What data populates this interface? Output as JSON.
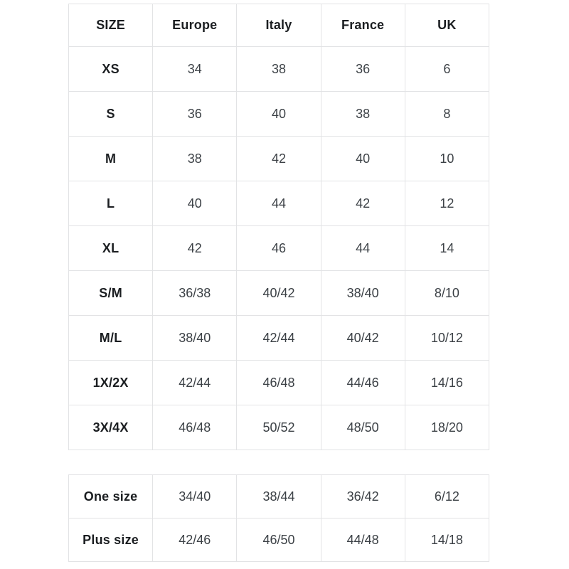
{
  "colors": {
    "background": "#ffffff",
    "border": "#e2e3e5",
    "header_text": "#1b1e21",
    "value_text": "#3c4146"
  },
  "size_table": {
    "columns": [
      "SIZE",
      "Europe",
      "Italy",
      "France",
      "UK"
    ],
    "rows": [
      {
        "label": "XS",
        "values": [
          "34",
          "38",
          "36",
          "6"
        ]
      },
      {
        "label": "S",
        "values": [
          "36",
          "40",
          "38",
          "8"
        ]
      },
      {
        "label": "M",
        "values": [
          "38",
          "42",
          "40",
          "10"
        ]
      },
      {
        "label": "L",
        "values": [
          "40",
          "44",
          "42",
          "12"
        ]
      },
      {
        "label": "XL",
        "values": [
          "42",
          "46",
          "44",
          "14"
        ]
      },
      {
        "label": "S/M",
        "values": [
          "36/38",
          "40/42",
          "38/40",
          "8/10"
        ]
      },
      {
        "label": "M/L",
        "values": [
          "38/40",
          "42/44",
          "40/42",
          "10/12"
        ]
      },
      {
        "label": "1X/2X",
        "values": [
          "42/44",
          "46/48",
          "44/46",
          "14/16"
        ]
      },
      {
        "label": "3X/4X",
        "values": [
          "46/48",
          "50/52",
          "48/50",
          "18/20"
        ]
      }
    ]
  },
  "special_size_table": {
    "rows": [
      {
        "label": "One size",
        "values": [
          "34/40",
          "38/44",
          "36/42",
          "6/12"
        ]
      },
      {
        "label": "Plus size",
        "values": [
          "42/46",
          "46/50",
          "44/48",
          "14/18"
        ]
      }
    ]
  },
  "chart_data": {
    "type": "table",
    "title": "",
    "columns": [
      "SIZE",
      "Europe",
      "Italy",
      "France",
      "UK"
    ],
    "rows": [
      [
        "XS",
        "34",
        "38",
        "36",
        "6"
      ],
      [
        "S",
        "36",
        "40",
        "38",
        "8"
      ],
      [
        "M",
        "38",
        "42",
        "40",
        "10"
      ],
      [
        "L",
        "40",
        "44",
        "42",
        "12"
      ],
      [
        "XL",
        "42",
        "46",
        "44",
        "14"
      ],
      [
        "S/M",
        "36/38",
        "40/42",
        "38/40",
        "8/10"
      ],
      [
        "M/L",
        "38/40",
        "42/44",
        "40/42",
        "10/12"
      ],
      [
        "1X/2X",
        "42/44",
        "46/48",
        "44/46",
        "14/16"
      ],
      [
        "3X/4X",
        "46/48",
        "50/52",
        "48/50",
        "18/20"
      ]
    ],
    "secondary_rows": [
      [
        "One size",
        "34/40",
        "38/44",
        "36/42",
        "6/12"
      ],
      [
        "Plus size",
        "42/46",
        "46/50",
        "44/48",
        "14/18"
      ]
    ],
    "layout": "two stacked bordered tables, all cells centered, header and first column bold"
  }
}
